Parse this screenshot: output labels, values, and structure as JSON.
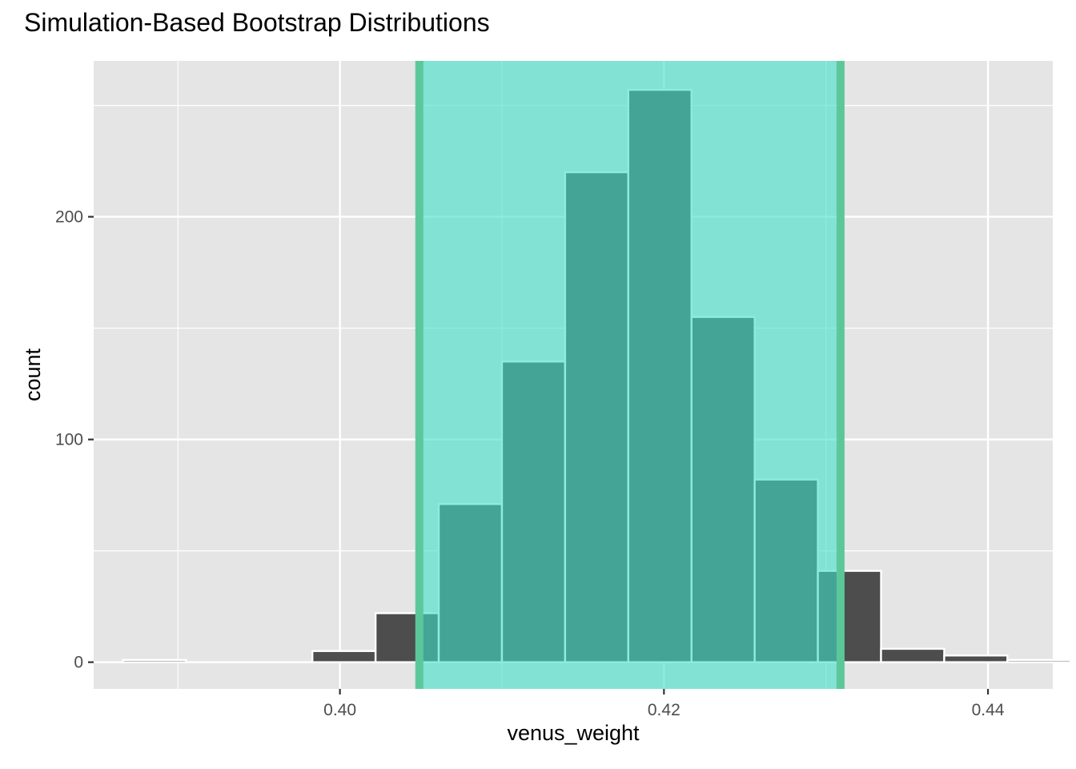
{
  "chart_data": {
    "type": "bar",
    "title": "Simulation-Based Bootstrap Distributions",
    "xlabel": "venus_weight",
    "ylabel": "count",
    "xlim": [
      0.3848,
      0.444
    ],
    "ylim": [
      -12,
      270
    ],
    "x_ticks": [
      0.4,
      0.42,
      0.44
    ],
    "x_tick_labels": [
      "0.40",
      "0.42",
      "0.44"
    ],
    "x_minor_ticks": [
      0.39,
      0.41,
      0.43
    ],
    "y_ticks": [
      0,
      100,
      200
    ],
    "y_tick_labels": [
      "0",
      "100",
      "200"
    ],
    "y_minor_ticks": [
      50,
      150,
      250
    ],
    "grid": true,
    "bins": [
      {
        "x0": 0.3866,
        "x1": 0.3905,
        "count": 1
      },
      {
        "x0": 0.3905,
        "x1": 0.3944,
        "count": 0
      },
      {
        "x0": 0.3944,
        "x1": 0.3983,
        "count": 0
      },
      {
        "x0": 0.3983,
        "x1": 0.4022,
        "count": 5
      },
      {
        "x0": 0.4022,
        "x1": 0.4061,
        "count": 22
      },
      {
        "x0": 0.4061,
        "x1": 0.41,
        "count": 71
      },
      {
        "x0": 0.41,
        "x1": 0.4139,
        "count": 135
      },
      {
        "x0": 0.4139,
        "x1": 0.4178,
        "count": 220
      },
      {
        "x0": 0.4178,
        "x1": 0.4217,
        "count": 257
      },
      {
        "x0": 0.4217,
        "x1": 0.4256,
        "count": 155
      },
      {
        "x0": 0.4256,
        "x1": 0.4295,
        "count": 82
      },
      {
        "x0": 0.4295,
        "x1": 0.4334,
        "count": 41
      },
      {
        "x0": 0.4334,
        "x1": 0.4373,
        "count": 6
      },
      {
        "x0": 0.4373,
        "x1": 0.4412,
        "count": 3
      },
      {
        "x0": 0.4412,
        "x1": 0.4451,
        "count": 1
      }
    ],
    "shaded_interval": [
      0.4049,
      0.4309
    ],
    "colors": {
      "panel_background": "#e5e5e5",
      "grid": "#ffffff",
      "bar_fill": "#4d4d4d",
      "bar_outline": "#ffffff",
      "interval_fill": "#40e0c8",
      "interval_line": "#5cc89a"
    }
  }
}
